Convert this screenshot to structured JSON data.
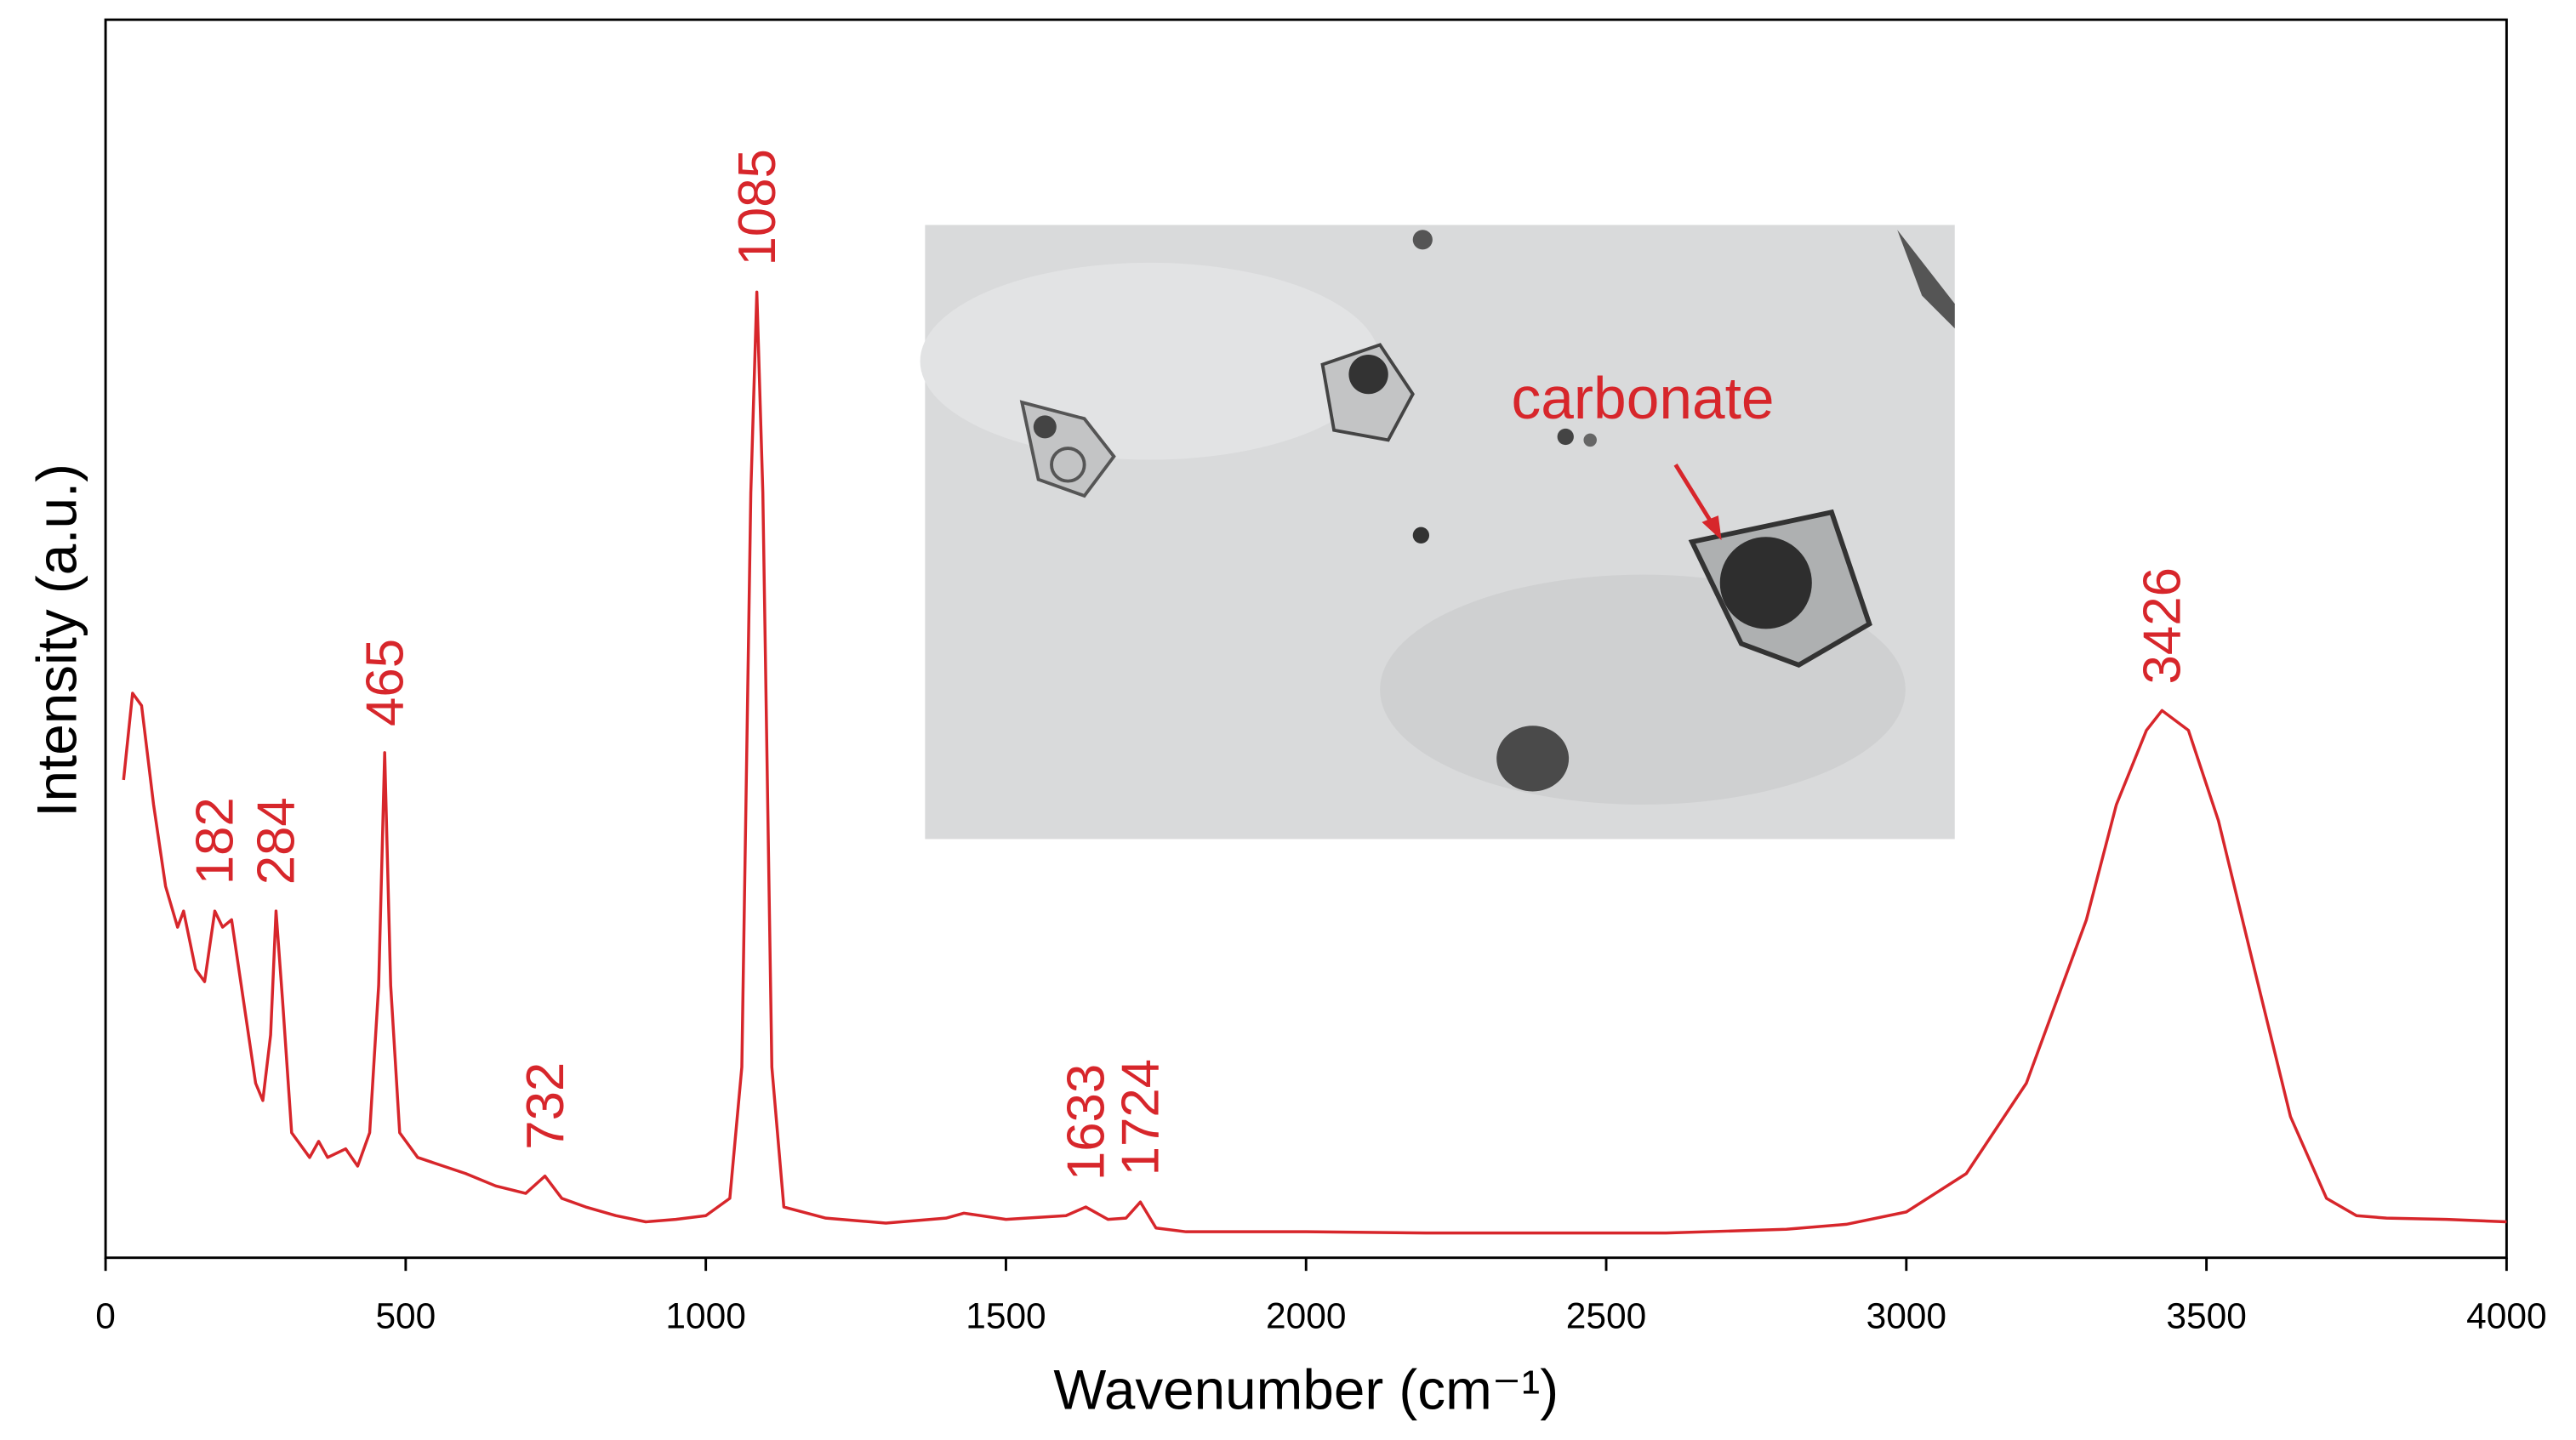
{
  "chart_data": {
    "type": "line",
    "x_label": "Wavenumber (cm⁻¹)",
    "y_label": "Intensity (a.u.)",
    "color": "#d7262b",
    "xlim": [
      0,
      4000
    ],
    "xticks": [
      0,
      500,
      1000,
      1500,
      2000,
      2500,
      3000,
      3500,
      4000
    ],
    "ylim": [
      0,
      100
    ],
    "x": [
      30,
      45,
      60,
      80,
      100,
      120,
      130,
      150,
      165,
      182,
      195,
      210,
      230,
      250,
      262,
      275,
      284,
      295,
      310,
      340,
      355,
      370,
      400,
      420,
      440,
      455,
      465,
      475,
      490,
      520,
      600,
      650,
      700,
      732,
      760,
      800,
      850,
      900,
      950,
      1000,
      1040,
      1060,
      1075,
      1085,
      1095,
      1110,
      1130,
      1200,
      1300,
      1400,
      1430,
      1500,
      1600,
      1633,
      1670,
      1700,
      1724,
      1750,
      1800,
      2000,
      2200,
      2400,
      2600,
      2800,
      2900,
      3000,
      3100,
      3200,
      3300,
      3350,
      3400,
      3426,
      3470,
      3520,
      3580,
      3640,
      3700,
      3750,
      3800,
      3900,
      4000
    ],
    "values": [
      38.6,
      45.6,
      44.6,
      36.6,
      30.0,
      26.7,
      28.0,
      23.3,
      22.3,
      28.0,
      26.7,
      27.3,
      20.7,
      14.1,
      12.7,
      18.0,
      28.0,
      20.7,
      10.1,
      8.1,
      9.4,
      8.1,
      8.8,
      7.4,
      10.1,
      22.0,
      40.8,
      22.0,
      10.1,
      8.1,
      6.8,
      5.8,
      5.2,
      6.6,
      4.8,
      4.1,
      3.4,
      2.9,
      3.1,
      3.4,
      4.8,
      15.4,
      61.8,
      78.0,
      61.8,
      15.4,
      4.1,
      3.2,
      2.8,
      3.2,
      3.6,
      3.1,
      3.4,
      4.1,
      3.1,
      3.2,
      4.5,
      2.4,
      2.1,
      2.1,
      2.0,
      2.0,
      2.0,
      2.3,
      2.7,
      3.7,
      6.8,
      14.1,
      27.3,
      36.6,
      42.6,
      44.2,
      42.6,
      35.3,
      23.3,
      11.4,
      4.8,
      3.4,
      3.2,
      3.1,
      2.9
    ],
    "annotations": [
      {
        "label": "182",
        "x": 182
      },
      {
        "label": "284",
        "x": 284
      },
      {
        "label": "465",
        "x": 465
      },
      {
        "label": "732",
        "x": 732
      },
      {
        "label": "1085",
        "x": 1085
      },
      {
        "label": "1633",
        "x": 1633
      },
      {
        "label": "1724",
        "x": 1724
      },
      {
        "label": "3426",
        "x": 3426
      }
    ],
    "inset_label": "carbonate"
  }
}
